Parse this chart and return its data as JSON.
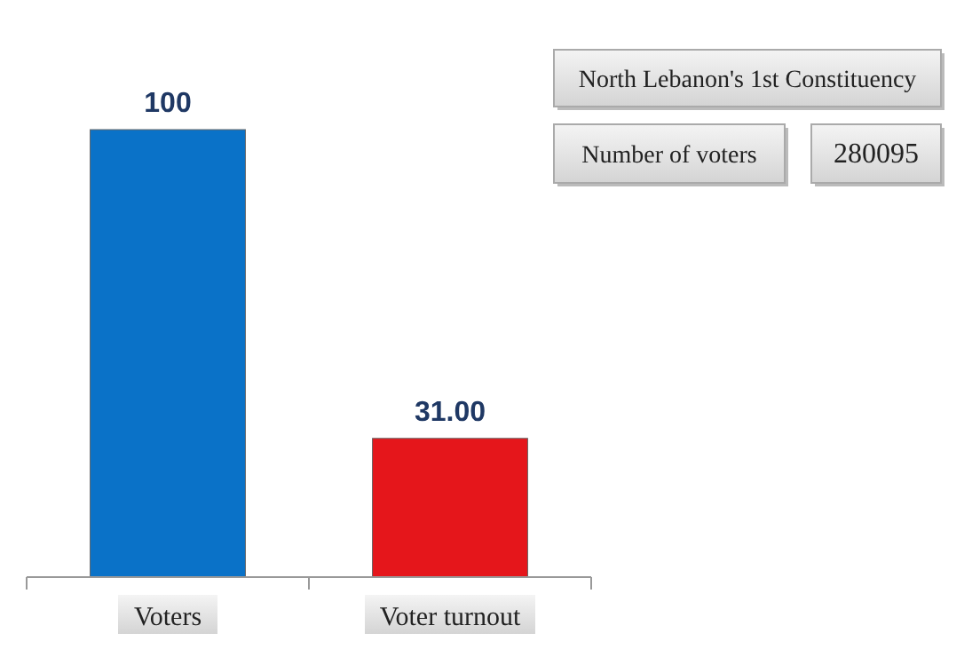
{
  "chart_data": {
    "type": "bar",
    "categories": [
      "Voters",
      "Voter turnout"
    ],
    "values": [
      100,
      31
    ],
    "value_labels": [
      "100",
      "31.00"
    ],
    "colors": [
      "#0a72c8",
      "#e5161b"
    ],
    "annotations": [
      "North Lebanon's 1st Constituency",
      "Number of voters",
      "280095"
    ]
  }
}
